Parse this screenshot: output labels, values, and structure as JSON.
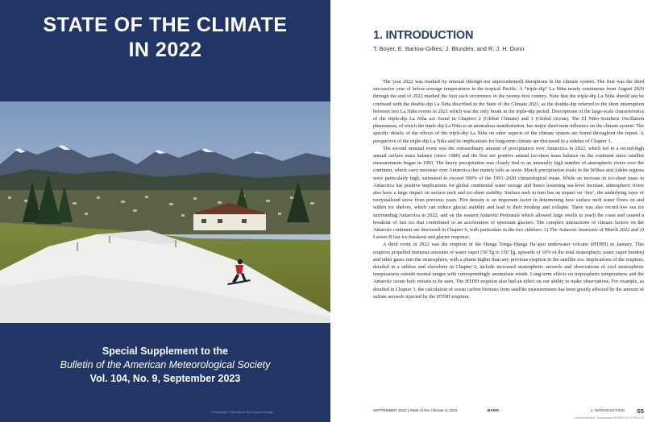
{
  "cover": {
    "title_line1": "STATE OF THE CLIMATE",
    "title_line2": "IN 2022",
    "supplement_line1": "Special Supplement to the",
    "supplement_line2": "Bulletin of the American Meteorological Society",
    "supplement_line3": "Vol. 104, No. 9, September 2023",
    "photo_credit": "Photograph: Oberstdorf 2022 (cover image)",
    "background_color": "#213566"
  },
  "article": {
    "section_title": "1. INTRODUCTION",
    "authors": "T. Boyer, E. Bartow-Gillies, J. Blunden, and R. J. H. Dunn",
    "paragraphs": [
      "The year 2022 was marked by unusual (though not unprecedented) disruptions in the climate system. The first was the third successive year of below-average temperatures in the tropical Pacific. A “triple-dip” La Niña nearly continuous from August 2020 through the end of 2022 marked the first such occurrence in the twenty-first century. Note that the triple-dip La Niña should not be confused with the double-dip La Niña described in the State of the Climate 2021, as the double-dip referred to the short interruption between two La Niña events in 2021 which was the only break in the triple-dip period. Descriptions of the large-scale characteristics of the triple-dip La Niña are found in Chapters 2 (Global Climate) and 3 (Global Ocean). The El Niño–Southern Oscillation phenomena, of which the triple-dip La Niña is an anomalous manifestation, has major short-term influence on the climate system. The specific details of the effects of the triple-dip La Niña on other aspects of the climate system are found throughout the report. A perspective of the triple-dip La Niña and its implications for long-term climate are discussed in a sidebar of Chapter 3.",
      "The second unusual event was the extraordinary amount of precipitation over Antarctica in 2022, which led to a record-high annual surface mass balance (since 1980) and the first net positive annual ice-sheet mass balance on the continent since satellite measurements began in 1993. The heavy precipitation was closely tied to an unusually high number of atmospheric rivers over the continent, which carry moisture over Antarctica that mainly falls as snow. March precipitation totals in the Wilkes and Adelie regions were particularly high, estimated to exceed 300% of the 1991–2020 climatological mean. While an increase in ice-sheet mass in Antarctica has positive implications for global continental water storage and hence lessening sea-level increase, atmospheric rivers also have a large impact on surface melt and ice-sheet stability. Surface melt in turn has an impact on ‘firn’, the underlying layer of recrystallized snow from previous years. Firn density is an important factor in determining how surface melt water flows on and within ice shelves, which can reduce glacial stability and lead to their breakup and collapse. There was also record-low sea ice surrounding Antarctica in 2022, and on the eastern Antarctic Peninsula which allowed large swells to reach the coast and caused a breakout of fast ice that contributed to an acceleration of upstream glaciers. The complex interactions of climate factors on the Antarctic continent are discussed in Chapter 6, with particulars in the two sidebars: 1) The Antarctic heatwave of March 2022 and 2) Larsen-B fast ice breakout and glacier response.",
      "A third event in 2022 was the eruption of the Hunga Tonga–Hunga Ha’apai underwater volcano (HTHH) in January. This eruption propelled immense amounts of water vapor (50 Tg to 150 Tg, upwards of 10% of the total stratospheric water vapor burden) and other gases into the stratosphere, with a plume higher than any previous eruption in the satellite era. Implications of the eruption, detailed in a sidebar and elsewhere in Chapter 2, include increased stratospheric aerosols and observations of cool stratospheric temperatures outside normal ranges with correspondingly anomalous winds. Long-term effects on tropospheric temperatures and the Antarctic ozone hole remain to be seen. The HTHH eruption also had an effect on our ability to make observations. For example, as detailed in Chapter 3, the calculation of ocean carbon biomass from satellite measurements has been greatly affected by the amount of sulfate aerosols injected by the HTHH eruption."
    ],
    "footer": {
      "left": "SEPTEMBER 2023 | State of the Climate in 2022",
      "middle": "BAMS",
      "right": "1. INTRODUCTION",
      "page": "S5",
      "download": "Unauthenticated | Downloaded 09/28/23 02:13 PM UTC"
    }
  }
}
